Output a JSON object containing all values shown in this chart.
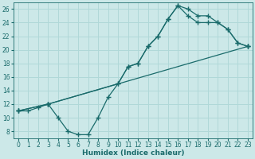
{
  "xlabel": "Humidex (Indice chaleur)",
  "bg_color": "#cce8e8",
  "line_color": "#1a6b6b",
  "grid_color": "#b0d8d8",
  "xlim": [
    -0.5,
    23.5
  ],
  "ylim": [
    7,
    27
  ],
  "xticks": [
    0,
    1,
    2,
    3,
    4,
    5,
    6,
    7,
    8,
    9,
    10,
    11,
    12,
    13,
    14,
    15,
    16,
    17,
    18,
    19,
    20,
    21,
    22,
    23
  ],
  "yticks": [
    8,
    10,
    12,
    14,
    16,
    18,
    20,
    22,
    24,
    26
  ],
  "series1_x": [
    0,
    1,
    2,
    3,
    4,
    5,
    6,
    7,
    8,
    9,
    10,
    11,
    12,
    13,
    14,
    15,
    16,
    17,
    18,
    19,
    20,
    21,
    22,
    23
  ],
  "series1_y": [
    11,
    11,
    11.5,
    12,
    10,
    8,
    7.5,
    7.5,
    10,
    13,
    15,
    17.5,
    18,
    20.5,
    22,
    24.5,
    26.5,
    26,
    25,
    25,
    24,
    23,
    21,
    20.5
  ],
  "series2_x": [
    0,
    3,
    23
  ],
  "series2_y": [
    11,
    12,
    20.5
  ],
  "series3_x": [
    0,
    3,
    10,
    11,
    12,
    13,
    14,
    15,
    16,
    17,
    18,
    19,
    20,
    21,
    22,
    23
  ],
  "series3_y": [
    11,
    12,
    15,
    17.5,
    18,
    20.5,
    22,
    24.5,
    26.5,
    25,
    24,
    24,
    24,
    23,
    21,
    20.5
  ]
}
